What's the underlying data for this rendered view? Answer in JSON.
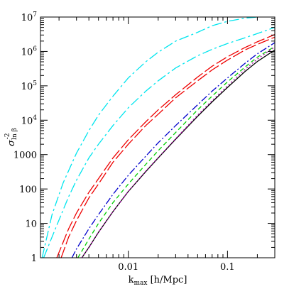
{
  "chart_data": {
    "type": "line",
    "xlabel": "k",
    "xlabel_sub": "max",
    "xlabel_unit": " [h/Mpc]",
    "ylabel": "σ",
    "ylabel_sup": "-2",
    "ylabel_sub": "ln β",
    "xscale": "log",
    "yscale": "log",
    "xlim": [
      0.0013,
      0.3
    ],
    "ylim": [
      1,
      10000000
    ],
    "grid": false,
    "legend": "none",
    "x_ticks": [
      {
        "value": 0.01,
        "label": "0.01"
      },
      {
        "value": 0.1,
        "label": "0.1"
      }
    ],
    "y_ticks": [
      {
        "value": 1,
        "label": "1"
      },
      {
        "value": 10,
        "label": "10"
      },
      {
        "value": 100,
        "label": "100"
      },
      {
        "value": 1000,
        "label": "1000"
      },
      {
        "value": 10000,
        "label": "10",
        "exp": "4"
      },
      {
        "value": 100000,
        "label": "10",
        "exp": "5"
      },
      {
        "value": 1000000,
        "label": "10",
        "exp": "6"
      },
      {
        "value": 10000000,
        "label": "10",
        "exp": "7"
      }
    ],
    "series": [
      {
        "color": "#00e5ee",
        "dash": "14,4,3,4",
        "x": [
          0.00135,
          0.0017,
          0.0022,
          0.003,
          0.004,
          0.005,
          0.007,
          0.01,
          0.015,
          0.02,
          0.03,
          0.05,
          0.07,
          0.1,
          0.15,
          0.2
        ],
        "y": [
          1,
          18,
          150,
          1100,
          5000,
          14000,
          50000,
          170000,
          500000,
          950000,
          2000000,
          3600000,
          5600000,
          7500000,
          9300000,
          10000000
        ]
      },
      {
        "color": "#00e5ee",
        "dash": "14,4,3,4",
        "x": [
          0.0014,
          0.0018,
          0.0025,
          0.003,
          0.004,
          0.005,
          0.007,
          0.01,
          0.015,
          0.02,
          0.03,
          0.05,
          0.07,
          0.1,
          0.15,
          0.2,
          0.3
        ],
        "y": [
          1,
          6,
          60,
          180,
          800,
          2000,
          7000,
          23000,
          70000,
          140000,
          330000,
          750000,
          1150000,
          1700000,
          2500000,
          3300000,
          5000000
        ]
      },
      {
        "color": "#ee0000",
        "dash": "16,4",
        "x": [
          0.0019,
          0.0025,
          0.003,
          0.004,
          0.005,
          0.007,
          0.01,
          0.015,
          0.02,
          0.03,
          0.05,
          0.07,
          0.1,
          0.15,
          0.2,
          0.3
        ],
        "y": [
          1,
          7,
          20,
          80,
          200,
          800,
          2700,
          9000,
          20000,
          55000,
          180000,
          370000,
          700000,
          1300000,
          1900000,
          3100000
        ]
      },
      {
        "color": "#ee0000",
        "dash": "16,4",
        "x": [
          0.0021,
          0.0025,
          0.003,
          0.004,
          0.005,
          0.007,
          0.01,
          0.015,
          0.02,
          0.03,
          0.05,
          0.07,
          0.1,
          0.15,
          0.2,
          0.3
        ],
        "y": [
          1,
          4,
          12,
          55,
          140,
          600,
          2000,
          7000,
          15000,
          45000,
          140000,
          290000,
          560000,
          1100000,
          1600000,
          2600000
        ]
      },
      {
        "color": "#0000cc",
        "dash": "10,3,2,3",
        "x": [
          0.0027,
          0.003,
          0.004,
          0.005,
          0.007,
          0.01,
          0.015,
          0.02,
          0.03,
          0.05,
          0.07,
          0.1,
          0.15,
          0.2,
          0.3
        ],
        "y": [
          1,
          1.8,
          7,
          18,
          70,
          250,
          900,
          2200,
          7000,
          28000,
          70000,
          170000,
          450000,
          850000,
          1800000
        ]
      },
      {
        "color": "#00cc00",
        "dash": "6,4",
        "x": [
          0.0031,
          0.004,
          0.005,
          0.007,
          0.01,
          0.015,
          0.02,
          0.03,
          0.05,
          0.07,
          0.1,
          0.15,
          0.2,
          0.3
        ],
        "y": [
          1,
          3.5,
          10,
          40,
          140,
          520,
          1300,
          4400,
          20000,
          50000,
          130000,
          350000,
          680000,
          1400000
        ]
      },
      {
        "color": "#000000",
        "dash": "",
        "x": [
          0.0034,
          0.004,
          0.005,
          0.007,
          0.01,
          0.015,
          0.02,
          0.03,
          0.05,
          0.07,
          0.1,
          0.15,
          0.2,
          0.3
        ],
        "y": [
          1,
          2,
          5.5,
          22,
          85,
          320,
          800,
          2800,
          13000,
          34000,
          90000,
          260000,
          510000,
          1100000
        ]
      },
      {
        "color": "#aa00aa",
        "dash": "2,3",
        "x": [
          0.0034,
          0.004,
          0.005,
          0.007,
          0.01,
          0.015,
          0.02,
          0.03,
          0.05,
          0.07,
          0.1,
          0.15,
          0.2,
          0.3
        ],
        "y": [
          1,
          2,
          5.5,
          22,
          85,
          330,
          820,
          2900,
          14000,
          37000,
          100000,
          300000,
          600000,
          1350000
        ]
      }
    ]
  }
}
